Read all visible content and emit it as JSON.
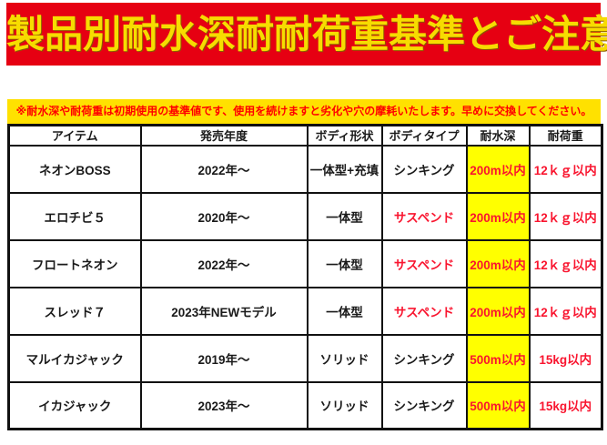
{
  "banner": {
    "title": "製品別耐水深耐耐荷重基準とご注意",
    "bg_color": "#e60012",
    "text_color": "#f7dc00"
  },
  "notice": {
    "text": "※耐水深や耐荷重は初期使用の基準値です、使用を続けますと劣化や穴の摩耗いたします。早めに交換してください。",
    "bg_color": "#ffe100",
    "text_color": "#ff0000"
  },
  "table": {
    "highlight_color": "#ffff00",
    "accent_text_color": "#f9152f",
    "border_color": "#111111",
    "columns": [
      {
        "key": "item",
        "label": "アイテム"
      },
      {
        "key": "year",
        "label": "発売年度"
      },
      {
        "key": "shape",
        "label": "ボディ形状"
      },
      {
        "key": "type",
        "label": "ボディタイプ"
      },
      {
        "key": "depth",
        "label": "耐水深"
      },
      {
        "key": "load",
        "label": "耐荷重"
      }
    ],
    "rows": [
      {
        "item": "ネオンBOSS",
        "year": "2022年～",
        "shape": "一体型+充填",
        "type": "シンキング",
        "type_color": "#1a1a1a",
        "depth": "200m以内",
        "load": "12ｋｇ以内"
      },
      {
        "item": "エロチビ５",
        "year": "2020年～",
        "shape": "一体型",
        "type": "サスペンド",
        "type_color": "#f9152f",
        "depth": "200m以内",
        "load": "12ｋｇ以内"
      },
      {
        "item": "フロートネオン",
        "year": "2022年～",
        "shape": "一体型",
        "type": "サスペンド",
        "type_color": "#f9152f",
        "depth": "200m以内",
        "load": "12ｋｇ以内"
      },
      {
        "item": "スレッド７",
        "year": "2023年NEWモデル",
        "shape": "一体型",
        "type": "サスペンド",
        "type_color": "#f9152f",
        "depth": "200m以内",
        "load": "12ｋｇ以内"
      },
      {
        "item": "マルイカジャック",
        "year": "2019年～",
        "shape": "ソリッド",
        "type": "シンキング",
        "type_color": "#1a1a1a",
        "depth": "500m以内",
        "load": "15kg以内"
      },
      {
        "item": "イカジャック",
        "year": "2023年～",
        "shape": "ソリッド",
        "type": "シンキング",
        "type_color": "#1a1a1a",
        "depth": "500m以内",
        "load": "15kg以内"
      }
    ]
  }
}
